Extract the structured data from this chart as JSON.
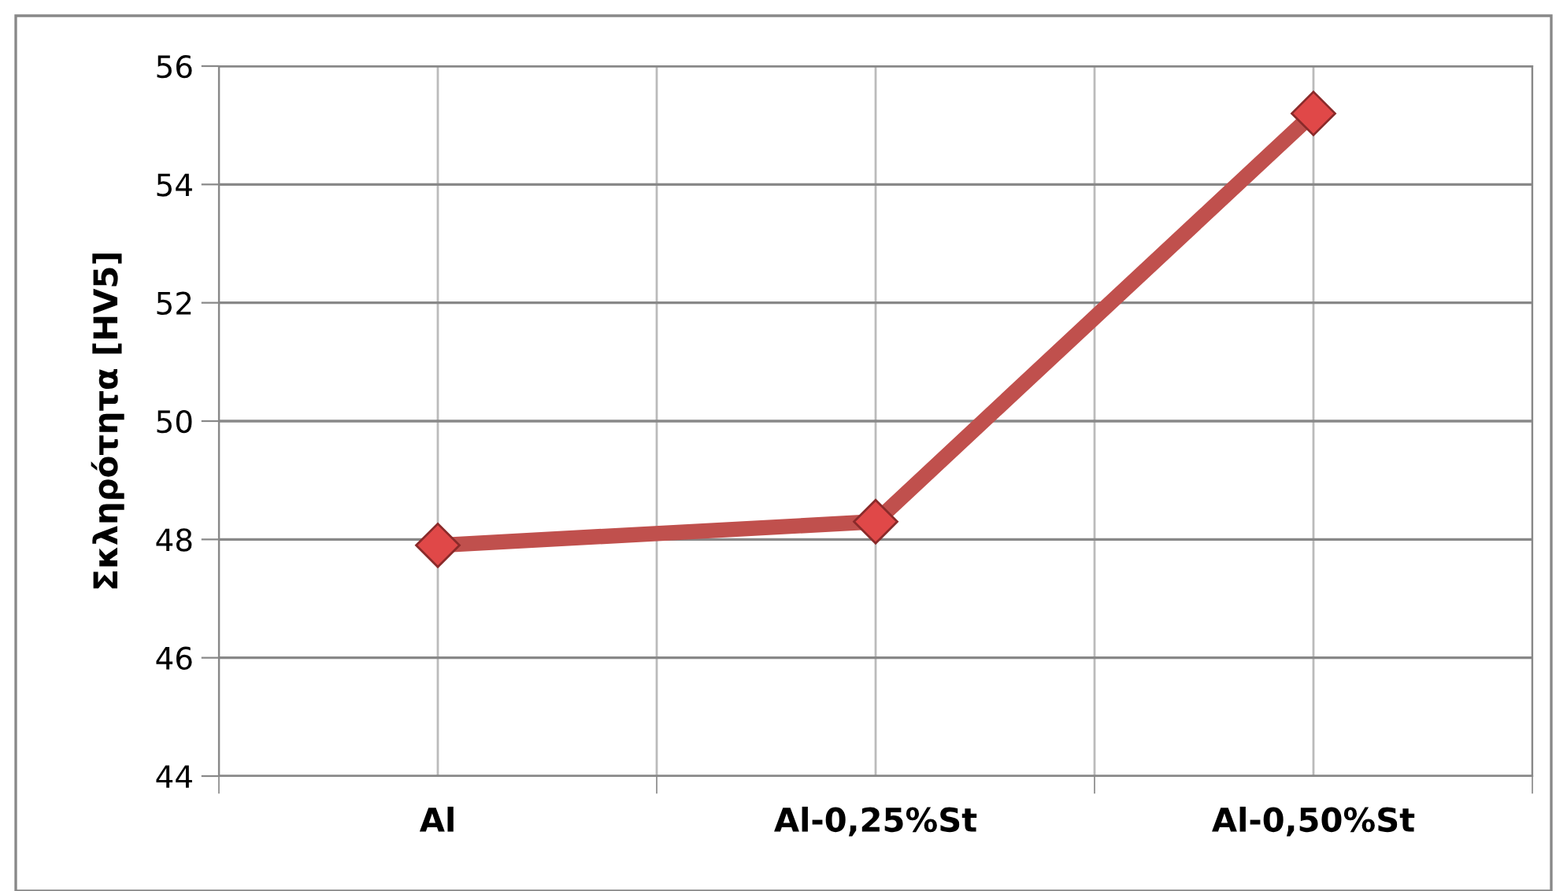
{
  "chart_data": {
    "type": "line",
    "ylabel": "Σκληρότητα [HV5]",
    "categories": [
      "Al",
      "Al-0,25%St",
      "Al-0,50%St"
    ],
    "series": [
      {
        "color": "#c0504d",
        "values": [
          47.9,
          48.3,
          55.2
        ]
      }
    ],
    "ylim": [
      44,
      56
    ],
    "yticks": [
      44,
      46,
      48,
      50,
      52,
      54,
      56
    ],
    "grid": true,
    "marker": "diamond",
    "line_style": "solid"
  }
}
